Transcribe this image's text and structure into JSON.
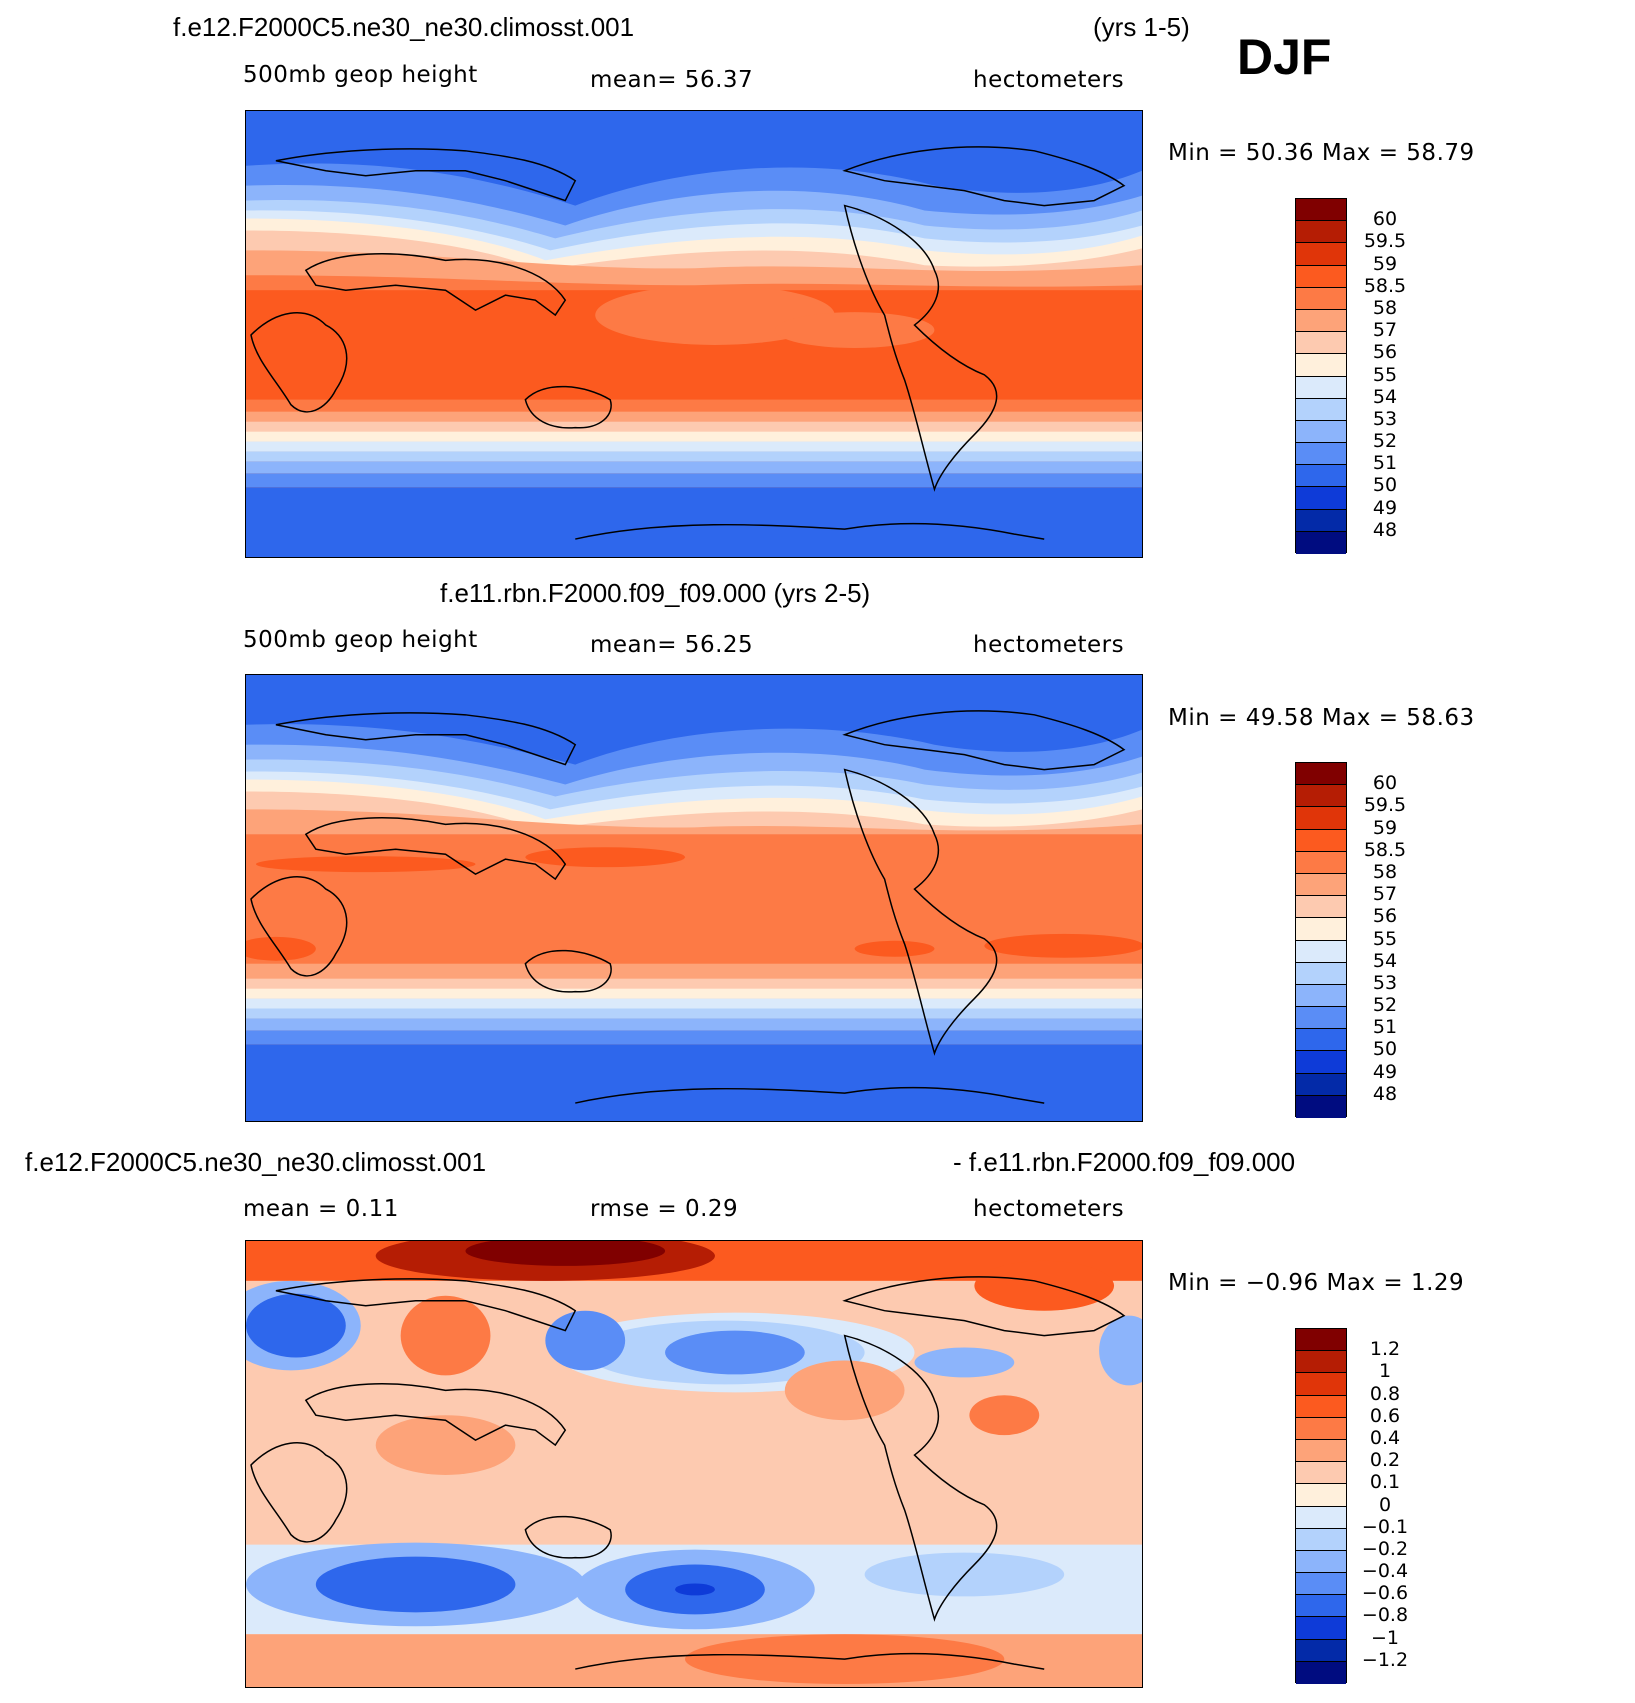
{
  "header": {
    "case1": "f.e12.F2000C5.ne30_ne30.climosst.001",
    "yrs1": "(yrs 1-5)",
    "season": "DJF",
    "case2": "f.e11.rbn.F2000.f09_f09.000 (yrs 2-5)",
    "diff_left": "f.e12.F2000C5.ne30_ne30.climosst.001",
    "diff_right": "- f.e11.rbn.F2000.f09_f09.000"
  },
  "panels": [
    {
      "variable": "500mb  geop  height",
      "stat1": "mean=   56.37",
      "units": "hectometers",
      "minmax": "Min =    50.36  Max =    58.79",
      "colorbar_labels": [
        "60",
        "59.5",
        "59",
        "58.5",
        "58",
        "57",
        "56",
        "55",
        "54",
        "53",
        "52",
        "51",
        "50",
        "49",
        "48"
      ],
      "colors": [
        "#800000",
        "#b51d04",
        "#e03509",
        "#fc5a1f",
        "#fd7a45",
        "#fda379",
        "#fdcab0",
        "#fff0dc",
        "#dbeafb",
        "#b3d2fc",
        "#8cb4fb",
        "#5a8df6",
        "#2e67ec",
        "#0e3bd8",
        "#032aa8",
        "#000c80"
      ]
    },
    {
      "variable": "500mb  geop  height",
      "stat1": "mean=   56.25",
      "units": "hectometers",
      "minmax": "Min =    49.58  Max =    58.63",
      "colorbar_labels": [
        "60",
        "59.5",
        "59",
        "58.5",
        "58",
        "57",
        "56",
        "55",
        "54",
        "53",
        "52",
        "51",
        "50",
        "49",
        "48"
      ],
      "colors": [
        "#800000",
        "#b51d04",
        "#e03509",
        "#fc5a1f",
        "#fd7a45",
        "#fda379",
        "#fdcab0",
        "#fff0dc",
        "#dbeafb",
        "#b3d2fc",
        "#8cb4fb",
        "#5a8df6",
        "#2e67ec",
        "#0e3bd8",
        "#032aa8",
        "#000c80"
      ]
    },
    {
      "variable": "mean =     0.11",
      "stat1": "rmse =     0.29",
      "units": "hectometers",
      "minmax": "Min =   −0.96  Max =     1.29",
      "colorbar_labels": [
        "1.2",
        "1",
        "0.8",
        "0.6",
        "0.4",
        "0.2",
        "0.1",
        "0",
        "−0.1",
        "−0.2",
        "−0.4",
        "−0.6",
        "−0.8",
        "−1",
        "−1.2"
      ],
      "colors": [
        "#800000",
        "#b51d04",
        "#e03509",
        "#fc5a1f",
        "#fd7a45",
        "#fda379",
        "#fdcab0",
        "#fff0dc",
        "#dbeafb",
        "#b3d2fc",
        "#8cb4fb",
        "#5a8df6",
        "#2e67ec",
        "#0e3bd8",
        "#032aa8",
        "#000c80"
      ]
    }
  ]
}
